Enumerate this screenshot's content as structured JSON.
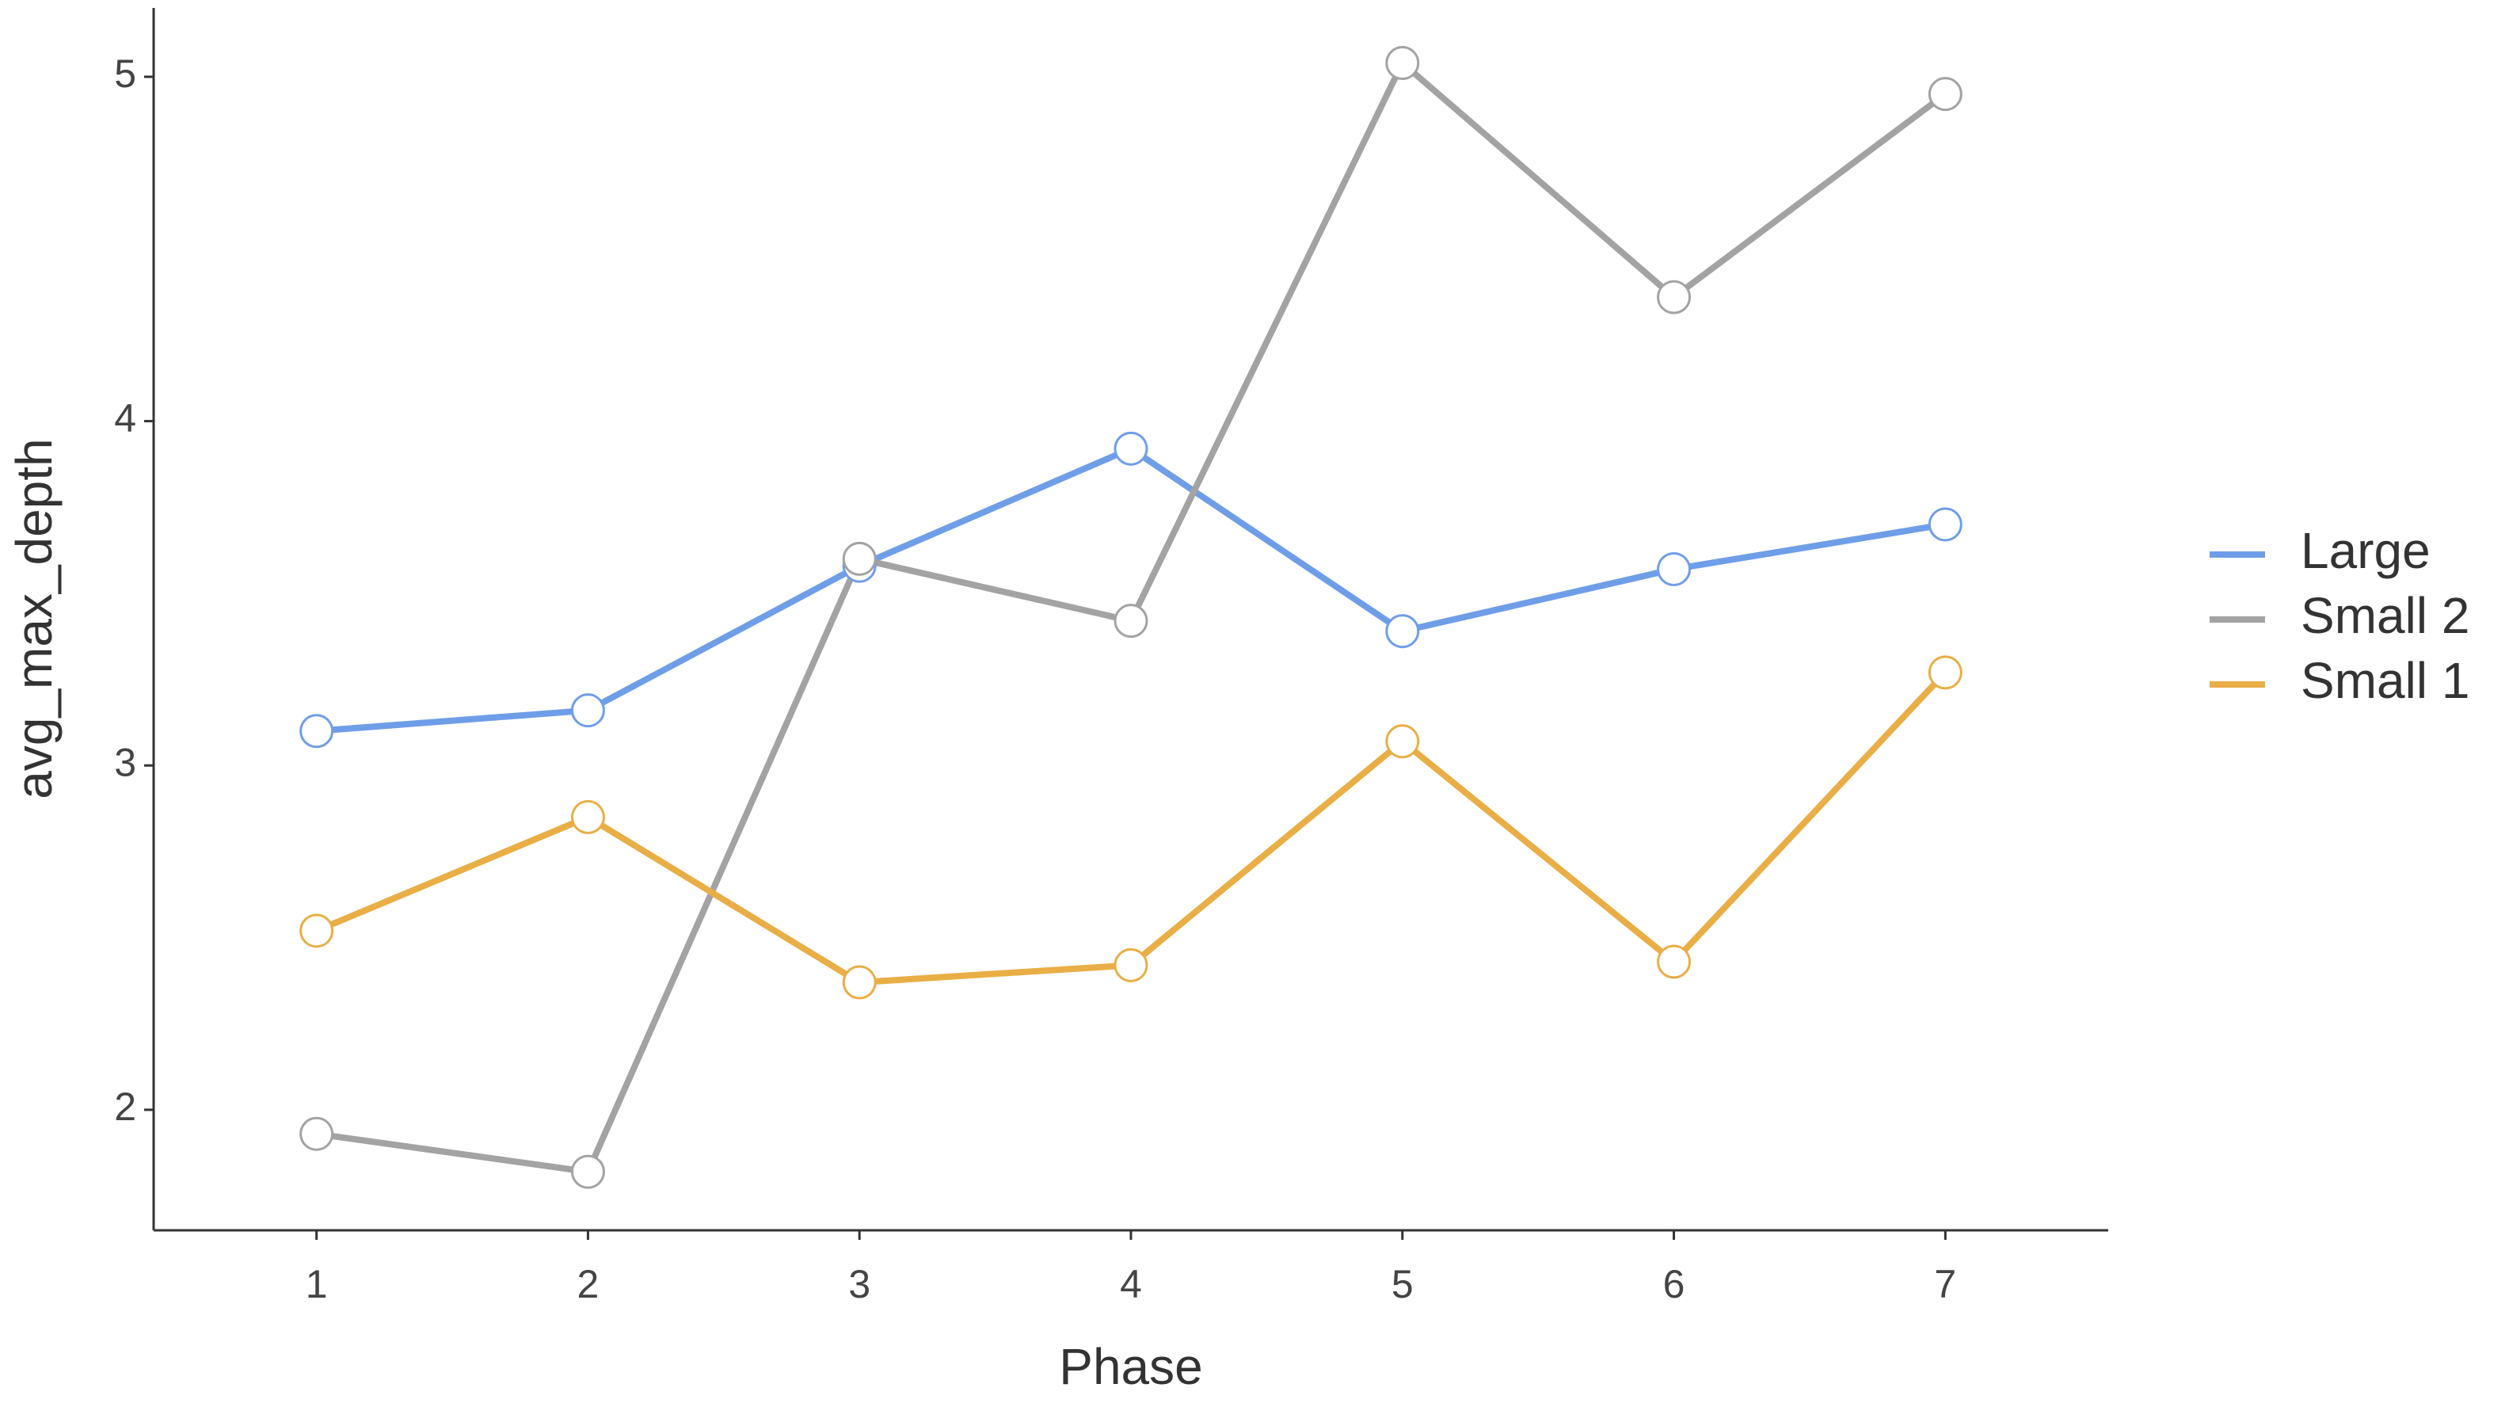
{
  "chart_data": {
    "type": "line",
    "x_label": "Phase",
    "y_label": "avg_max_depth",
    "x": [
      1,
      2,
      3,
      4,
      5,
      6,
      7
    ],
    "series": [
      {
        "name": "Large",
        "color": "#6f9ee8",
        "values": [
          3.1,
          3.16,
          3.58,
          3.92,
          3.39,
          3.57,
          3.7
        ]
      },
      {
        "name": "Small 2",
        "color": "#a3a3a3",
        "values": [
          1.93,
          1.82,
          3.6,
          3.42,
          5.04,
          4.36,
          4.95
        ]
      },
      {
        "name": "Small 1",
        "color": "#e9ae45",
        "values": [
          2.52,
          2.85,
          2.37,
          2.42,
          3.07,
          2.43,
          3.27
        ]
      }
    ],
    "xlim": [
      0.4,
      7.6
    ],
    "xticks": [
      1,
      2,
      3,
      4,
      5,
      6,
      7
    ],
    "ylim": [
      1.65,
      5.2
    ],
    "yticks": [
      2,
      3,
      4,
      5
    ],
    "grid": false,
    "legend": "right"
  }
}
